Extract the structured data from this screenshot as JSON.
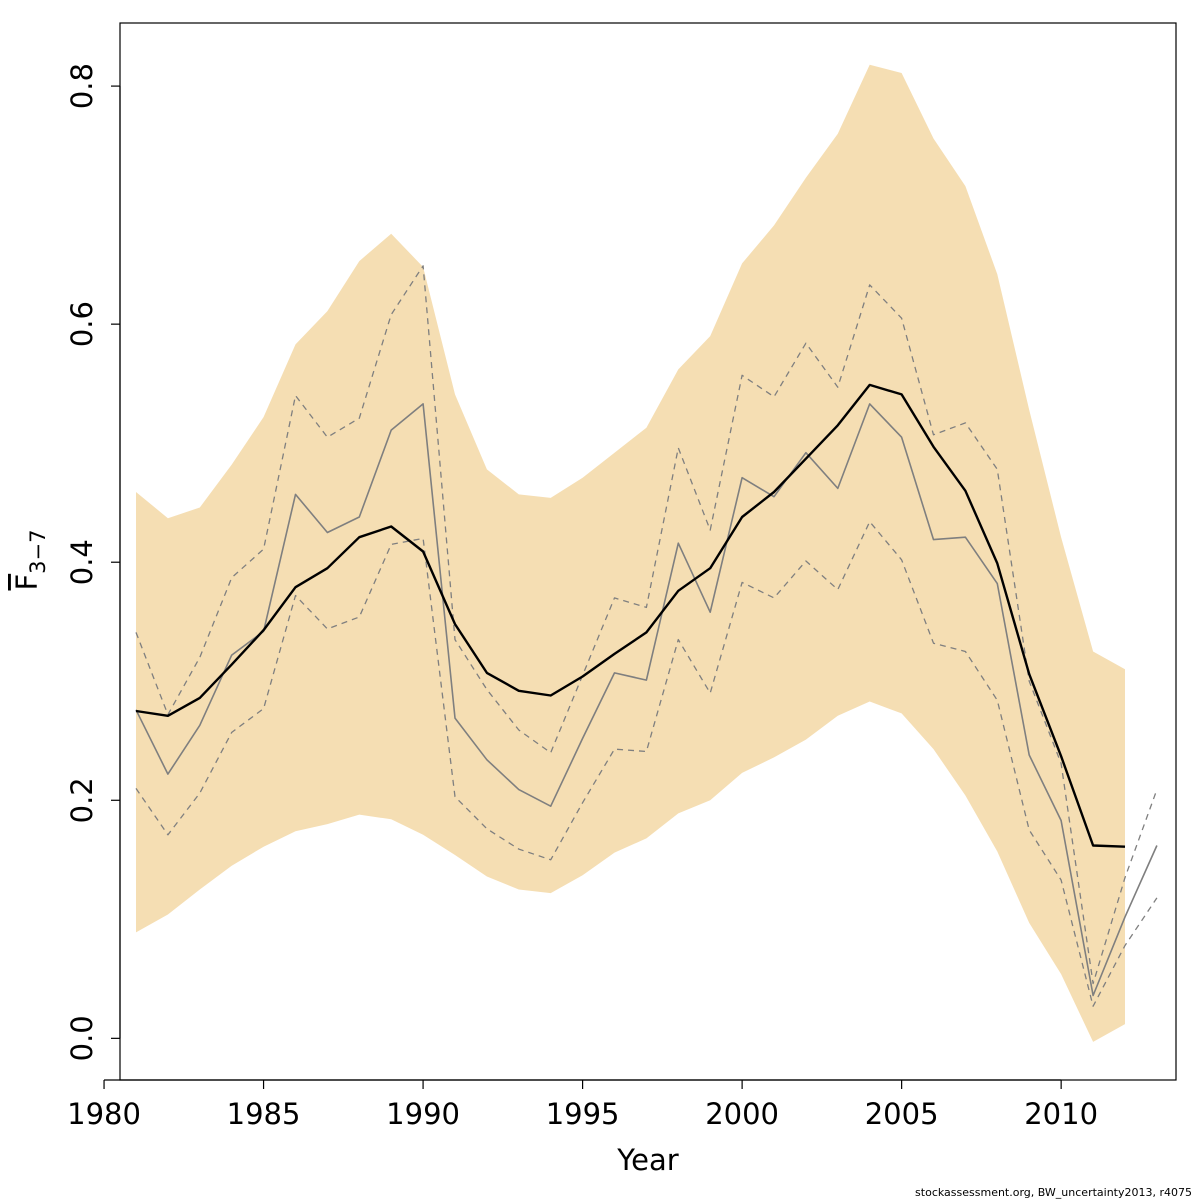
{
  "chart_data": {
    "type": "line",
    "xlabel": "Year",
    "ylabel": {
      "base": "F",
      "subscript": "3−7"
    },
    "xlim": [
      1980.5,
      2013.6
    ],
    "ylim": [
      -0.035,
      0.853
    ],
    "x_ticks": [
      1980,
      1985,
      1990,
      1995,
      2000,
      2005,
      2010
    ],
    "y_ticks": [
      "0.0",
      "0.2",
      "0.4",
      "0.6",
      "0.8"
    ],
    "grid": false,
    "credit": "stockassessment.org, BW_uncertainty2013, r4075",
    "colors": {
      "band": "#F5DEB3",
      "estimate": "#000000",
      "comparison": "#7F7F7F"
    },
    "band": {
      "x": [
        1981,
        1982,
        1983,
        1984,
        1985,
        1986,
        1987,
        1988,
        1989,
        1990,
        1991,
        1992,
        1993,
        1994,
        1995,
        1996,
        1997,
        1998,
        1999,
        2000,
        2001,
        2002,
        2003,
        2004,
        2005,
        2006,
        2007,
        2008,
        2009,
        2010,
        2011,
        2012
      ],
      "lower": [
        0.089,
        0.104,
        0.125,
        0.145,
        0.161,
        0.174,
        0.18,
        0.188,
        0.184,
        0.171,
        0.154,
        0.136,
        0.125,
        0.122,
        0.137,
        0.156,
        0.168,
        0.189,
        0.2,
        0.223,
        0.236,
        0.251,
        0.271,
        0.283,
        0.273,
        0.243,
        0.204,
        0.157,
        0.097,
        0.054,
        -0.003,
        0.012
      ],
      "upper": [
        0.459,
        0.437,
        0.446,
        0.482,
        0.522,
        0.583,
        0.611,
        0.653,
        0.676,
        0.648,
        0.541,
        0.478,
        0.457,
        0.454,
        0.471,
        0.492,
        0.513,
        0.562,
        0.59,
        0.651,
        0.683,
        0.723,
        0.76,
        0.818,
        0.811,
        0.756,
        0.716,
        0.642,
        0.528,
        0.421,
        0.325,
        0.31
      ]
    },
    "series": [
      {
        "x": [
          1981,
          1982,
          1983,
          1984,
          1985,
          1986,
          1987,
          1988,
          1989,
          1990,
          1991,
          1992,
          1993,
          1994,
          1995,
          1996,
          1997,
          1998,
          1999,
          2000,
          2001,
          2002,
          2003,
          2004,
          2005,
          2006,
          2007,
          2008,
          2009,
          2010,
          2011,
          2012
        ],
        "values": [
          0.275,
          0.271,
          0.286,
          0.314,
          0.343,
          0.379,
          0.395,
          0.421,
          0.43,
          0.409,
          0.348,
          0.307,
          0.292,
          0.288,
          0.304,
          0.323,
          0.341,
          0.376,
          0.395,
          0.438,
          0.459,
          0.487,
          0.515,
          0.549,
          0.541,
          0.497,
          0.46,
          0.399,
          0.306,
          0.237,
          0.162,
          0.161
        ],
        "style": "solid",
        "color": "estimate",
        "width": 2.4
      },
      {
        "x": [
          1981,
          1982,
          1983,
          1984,
          1985,
          1986,
          1987,
          1988,
          1989,
          1990,
          1991,
          1992,
          1993,
          1994,
          1995,
          1996,
          1997,
          1998,
          1999,
          2000,
          2001,
          2002,
          2003,
          2004,
          2005,
          2006,
          2007,
          2008,
          2009,
          2010,
          2011,
          2012,
          2013
        ],
        "values": [
          0.276,
          0.222,
          0.263,
          0.322,
          0.342,
          0.457,
          0.425,
          0.438,
          0.511,
          0.533,
          0.269,
          0.234,
          0.209,
          0.195,
          0.252,
          0.307,
          0.301,
          0.416,
          0.358,
          0.471,
          0.455,
          0.492,
          0.462,
          0.533,
          0.505,
          0.419,
          0.421,
          0.382,
          0.238,
          0.183,
          0.036,
          0.102,
          0.162
        ],
        "style": "solid",
        "color": "comparison",
        "width": 1.6
      },
      {
        "x": [
          1981,
          1982,
          1983,
          1984,
          1985,
          1986,
          1987,
          1988,
          1989,
          1990,
          1991,
          1992,
          1993,
          1994,
          1995,
          1996,
          1997,
          1998,
          1999,
          2000,
          2001,
          2002,
          2003,
          2004,
          2005,
          2006,
          2007,
          2008,
          2009,
          2010,
          2011,
          2012,
          2013
        ],
        "values": [
          0.341,
          0.272,
          0.32,
          0.387,
          0.411,
          0.54,
          0.505,
          0.521,
          0.608,
          0.649,
          0.335,
          0.293,
          0.259,
          0.24,
          0.305,
          0.37,
          0.362,
          0.496,
          0.427,
          0.557,
          0.539,
          0.584,
          0.547,
          0.633,
          0.605,
          0.507,
          0.517,
          0.478,
          0.3,
          0.231,
          0.046,
          0.135,
          0.209
        ],
        "style": "dashed",
        "color": "comparison",
        "width": 1.3
      },
      {
        "x": [
          1981,
          1982,
          1983,
          1984,
          1985,
          1986,
          1987,
          1988,
          1989,
          1990,
          1991,
          1992,
          1993,
          1994,
          1995,
          1996,
          1997,
          1998,
          1999,
          2000,
          2001,
          2002,
          2003,
          2004,
          2005,
          2006,
          2007,
          2008,
          2009,
          2010,
          2011,
          2012,
          2013
        ],
        "values": [
          0.21,
          0.171,
          0.206,
          0.257,
          0.277,
          0.372,
          0.344,
          0.354,
          0.415,
          0.42,
          0.203,
          0.176,
          0.159,
          0.15,
          0.198,
          0.243,
          0.241,
          0.335,
          0.29,
          0.383,
          0.37,
          0.401,
          0.377,
          0.434,
          0.402,
          0.332,
          0.325,
          0.284,
          0.175,
          0.133,
          0.027,
          0.078,
          0.118
        ],
        "style": "dashed",
        "color": "comparison",
        "width": 1.3
      }
    ]
  }
}
